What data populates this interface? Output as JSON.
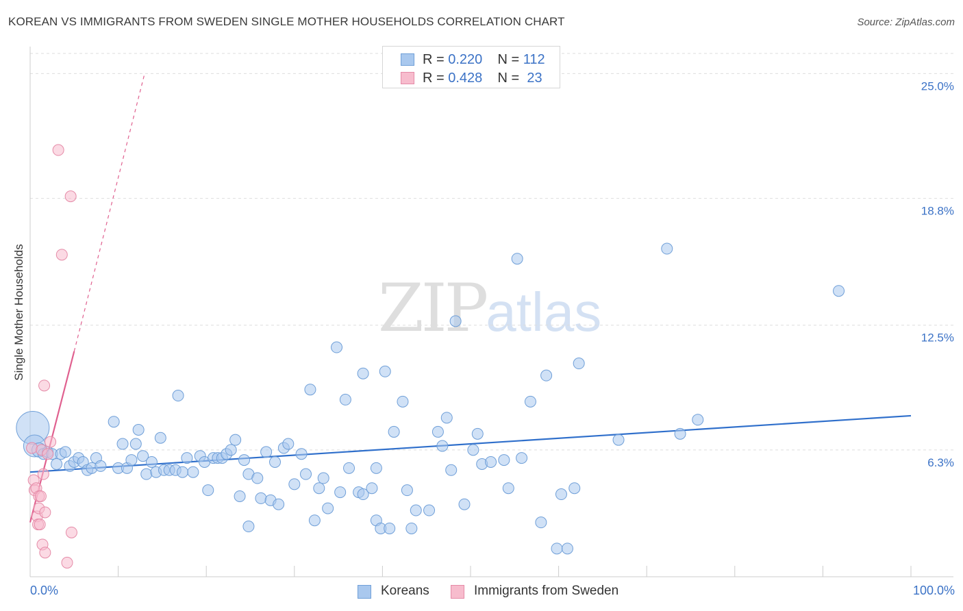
{
  "title": "KOREAN VS IMMIGRANTS FROM SWEDEN SINGLE MOTHER HOUSEHOLDS CORRELATION CHART",
  "source": "Source: ZipAtlas.com",
  "watermark": {
    "zip": "ZIP",
    "atlas": "atlas"
  },
  "legend": {
    "rows": [
      {
        "r_prefix": "R = ",
        "r_value": "0.220",
        "n_prefix": "N = ",
        "n_value": "112"
      },
      {
        "r_prefix": "R = ",
        "r_value": "0.428",
        "n_prefix": "N = ",
        "n_value": "23"
      }
    ]
  },
  "colors": {
    "koreans_fill": "#a9c8ee",
    "koreans_stroke": "#6f9fd8",
    "koreans_line": "#2f6fcb",
    "sweden_fill": "#f7bccd",
    "sweden_stroke": "#e58aa7",
    "sweden_line": "#e0608f",
    "grid": "#dddddd",
    "tick_label": "#3b72c6"
  },
  "chart_data": {
    "type": "scatter",
    "title": "KOREAN VS IMMIGRANTS FROM SWEDEN SINGLE MOTHER HOUSEHOLDS CORRELATION CHART",
    "xlabel": "",
    "ylabel": "Single Mother Households",
    "xlim": [
      0,
      100
    ],
    "ylim": [
      0,
      26
    ],
    "x_tick_labels": [
      "0.0%",
      "100.0%"
    ],
    "y_ticks": [
      6.3,
      12.5,
      18.8,
      25.0
    ],
    "y_tick_labels": [
      "6.3%",
      "12.5%",
      "18.8%",
      "25.0%"
    ],
    "grid": true,
    "legend_position": "top-center",
    "series": [
      {
        "name": "Koreans",
        "color": "#a9c8ee",
        "trend": {
          "x": [
            0,
            100
          ],
          "y": [
            5.2,
            8.0
          ],
          "style": "solid"
        },
        "points": [
          [
            0.3,
            7.4,
            3
          ],
          [
            0.5,
            6.5,
            2
          ],
          [
            1.0,
            6.3,
            1.3
          ],
          [
            1.5,
            6.1,
            1
          ],
          [
            2.0,
            6.2,
            1
          ],
          [
            2.5,
            6.1,
            1
          ],
          [
            3.0,
            5.6,
            1
          ],
          [
            3.5,
            6.1,
            1
          ],
          [
            4.0,
            6.2,
            1
          ],
          [
            4.5,
            5.5,
            1
          ],
          [
            5.0,
            5.7,
            1
          ],
          [
            5.5,
            5.9,
            1
          ],
          [
            6.0,
            5.7,
            1
          ],
          [
            6.5,
            5.3,
            1
          ],
          [
            7.0,
            5.4,
            1
          ],
          [
            7.5,
            5.9,
            1
          ],
          [
            8.0,
            5.5,
            1
          ],
          [
            9.5,
            7.7,
            1
          ],
          [
            10.0,
            5.4,
            1
          ],
          [
            10.5,
            6.6,
            1
          ],
          [
            11.0,
            5.4,
            1
          ],
          [
            11.5,
            5.8,
            1
          ],
          [
            12.0,
            6.6,
            1
          ],
          [
            12.3,
            7.3,
            1
          ],
          [
            12.8,
            6.0,
            1
          ],
          [
            13.2,
            5.1,
            1
          ],
          [
            13.8,
            5.7,
            1
          ],
          [
            14.3,
            5.2,
            1
          ],
          [
            14.8,
            6.9,
            1
          ],
          [
            15.2,
            5.3,
            1
          ],
          [
            15.8,
            5.3,
            1
          ],
          [
            16.5,
            5.3,
            1
          ],
          [
            16.8,
            9.0,
            1
          ],
          [
            17.3,
            5.2,
            1
          ],
          [
            17.8,
            5.9,
            1
          ],
          [
            18.5,
            5.2,
            1
          ],
          [
            19.3,
            6.0,
            1
          ],
          [
            19.8,
            5.7,
            1
          ],
          [
            20.2,
            4.3,
            1
          ],
          [
            20.8,
            5.9,
            1
          ],
          [
            21.3,
            5.9,
            1
          ],
          [
            21.8,
            5.9,
            1
          ],
          [
            22.3,
            6.1,
            1
          ],
          [
            22.8,
            6.3,
            1
          ],
          [
            23.3,
            6.8,
            1
          ],
          [
            23.8,
            4.0,
            1
          ],
          [
            24.3,
            5.8,
            1
          ],
          [
            24.8,
            2.5,
            1
          ],
          [
            24.8,
            5.1,
            1
          ],
          [
            25.8,
            4.9,
            1
          ],
          [
            26.2,
            3.9,
            1
          ],
          [
            26.8,
            6.2,
            1
          ],
          [
            27.3,
            3.8,
            1
          ],
          [
            27.8,
            5.7,
            1
          ],
          [
            28.2,
            3.6,
            1
          ],
          [
            28.8,
            6.4,
            1
          ],
          [
            29.3,
            6.6,
            1
          ],
          [
            30.0,
            4.6,
            1
          ],
          [
            30.8,
            6.1,
            1
          ],
          [
            31.3,
            5.1,
            1
          ],
          [
            31.8,
            9.3,
            1
          ],
          [
            32.3,
            2.8,
            1
          ],
          [
            32.8,
            4.4,
            1
          ],
          [
            33.3,
            4.9,
            1
          ],
          [
            33.8,
            3.4,
            1
          ],
          [
            34.8,
            11.4,
            1
          ],
          [
            35.2,
            4.2,
            1
          ],
          [
            35.8,
            8.8,
            1
          ],
          [
            36.2,
            5.4,
            1
          ],
          [
            37.3,
            4.2,
            1
          ],
          [
            37.8,
            4.1,
            1
          ],
          [
            37.8,
            10.1,
            1
          ],
          [
            38.8,
            4.4,
            1
          ],
          [
            39.3,
            2.8,
            1
          ],
          [
            39.3,
            5.4,
            1
          ],
          [
            39.8,
            2.4,
            1
          ],
          [
            40.3,
            10.2,
            1
          ],
          [
            40.8,
            2.4,
            1
          ],
          [
            41.3,
            7.2,
            1
          ],
          [
            42.3,
            8.7,
            1
          ],
          [
            42.8,
            4.3,
            1
          ],
          [
            43.3,
            2.4,
            1
          ],
          [
            43.8,
            3.3,
            1
          ],
          [
            45.3,
            3.3,
            1
          ],
          [
            46.3,
            7.2,
            1
          ],
          [
            46.8,
            6.5,
            1
          ],
          [
            47.3,
            7.9,
            1
          ],
          [
            47.8,
            5.3,
            1
          ],
          [
            48.3,
            12.7,
            1
          ],
          [
            49.3,
            3.6,
            1
          ],
          [
            50.3,
            6.3,
            1
          ],
          [
            50.8,
            7.1,
            1
          ],
          [
            51.3,
            5.6,
            1
          ],
          [
            52.3,
            5.7,
            1
          ],
          [
            53.8,
            5.8,
            1
          ],
          [
            54.3,
            4.4,
            1
          ],
          [
            55.3,
            15.8,
            1
          ],
          [
            55.8,
            5.9,
            1
          ],
          [
            56.8,
            8.7,
            1
          ],
          [
            58.0,
            2.7,
            1
          ],
          [
            58.6,
            10.0,
            1
          ],
          [
            59.8,
            1.4,
            1
          ],
          [
            60.3,
            4.1,
            1
          ],
          [
            61.0,
            1.4,
            1
          ],
          [
            61.8,
            4.4,
            1
          ],
          [
            62.3,
            10.6,
            1
          ],
          [
            66.8,
            6.8,
            1
          ],
          [
            72.3,
            16.3,
            1
          ],
          [
            73.8,
            7.1,
            1
          ],
          [
            75.8,
            7.8,
            1
          ],
          [
            91.8,
            14.2,
            1
          ]
        ]
      },
      {
        "name": "Immigrants from Sweden",
        "color": "#f7bccd",
        "trend": {
          "x": [
            0,
            5
          ],
          "y": [
            2.7,
            11.2
          ],
          "x_dashed": [
            5,
            13
          ],
          "y_dashed": [
            11.2,
            25.0
          ],
          "style": "solid+dashed"
        },
        "points": [
          [
            0.2,
            6.4,
            1
          ],
          [
            0.4,
            4.8,
            1
          ],
          [
            0.5,
            4.3,
            1
          ],
          [
            0.7,
            4.4,
            1
          ],
          [
            0.8,
            3.0,
            1
          ],
          [
            0.9,
            2.6,
            1
          ],
          [
            1.0,
            4.0,
            1
          ],
          [
            1.0,
            3.4,
            1
          ],
          [
            1.1,
            2.6,
            1
          ],
          [
            1.2,
            4.0,
            1
          ],
          [
            1.3,
            6.3,
            1
          ],
          [
            1.4,
            1.6,
            1
          ],
          [
            1.5,
            5.1,
            1
          ],
          [
            1.6,
            9.5,
            1
          ],
          [
            1.7,
            1.2,
            1
          ],
          [
            1.7,
            3.2,
            1
          ],
          [
            2.0,
            6.1,
            1
          ],
          [
            2.3,
            6.7,
            1
          ],
          [
            3.2,
            21.2,
            1
          ],
          [
            3.6,
            16.0,
            1
          ],
          [
            4.2,
            0.7,
            1
          ],
          [
            4.6,
            18.9,
            1
          ],
          [
            4.7,
            2.2,
            1
          ]
        ]
      }
    ]
  },
  "bottom_legend": {
    "items": [
      "Koreans",
      "Immigrants from Sweden"
    ]
  },
  "x_axis": {
    "min_label": "0.0%",
    "max_label": "100.0%"
  }
}
